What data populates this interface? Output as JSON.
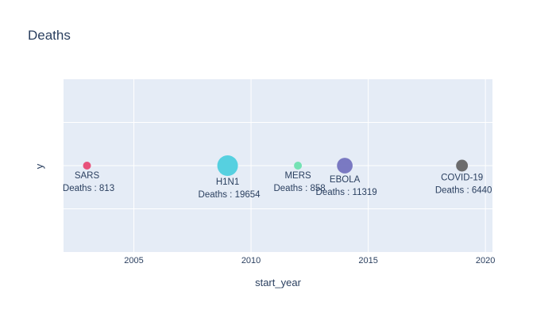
{
  "chart_data": {
    "type": "scatter",
    "title": "Deaths",
    "xlabel": "start_year",
    "ylabel": "y",
    "xlim": [
      2002,
      2020.3
    ],
    "ylim": [
      -2,
      2
    ],
    "x_ticks": [
      2005,
      2010,
      2015,
      2020
    ],
    "grid": true,
    "legend": "none",
    "points": [
      {
        "name": "SARS",
        "x": 2003,
        "y": 0,
        "deaths": 813,
        "label": "Deaths : 813",
        "color": "#e84a74"
      },
      {
        "name": "H1N1",
        "x": 2009,
        "y": 0,
        "deaths": 19654,
        "label": "Deaths : 19654",
        "color": "#4ecfde"
      },
      {
        "name": "MERS",
        "x": 2012,
        "y": 0,
        "deaths": 858,
        "label": "Deaths : 858",
        "color": "#6ee2b0"
      },
      {
        "name": "EBOLA",
        "x": 2014,
        "y": 0,
        "deaths": 11319,
        "label": "Deaths : 11319",
        "color": "#7473bf"
      },
      {
        "name": "COVID-19",
        "x": 2019,
        "y": 0,
        "deaths": 6440,
        "label": "Deaths : 6440",
        "color": "#656565"
      }
    ],
    "colors": {
      "plot_bg": "#e5ecf6",
      "grid": "#ffffff",
      "text": "#2a3f5f"
    }
  }
}
